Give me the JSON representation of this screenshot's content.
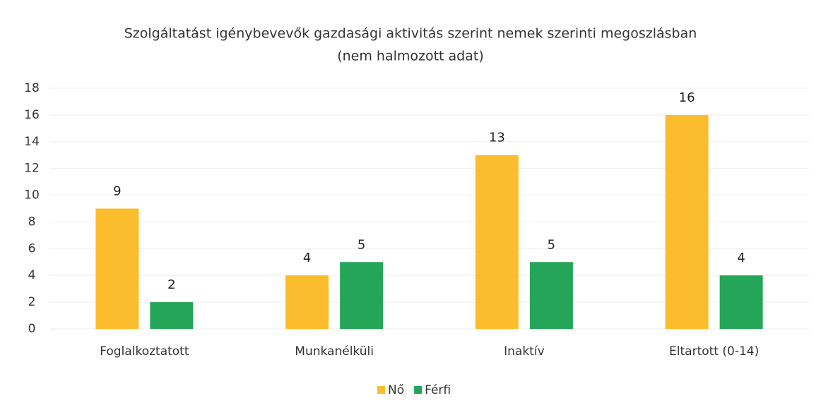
{
  "chart_data": {
    "type": "bar",
    "title": "Szolgáltatást igénybevevők gazdasági aktivitás szerint nemek szerinti megoszlásban",
    "subtitle": "(nem halmozott adat)",
    "categories": [
      "Foglalkoztatott",
      "Munkanélküli",
      "Inaktív",
      "Eltartott (0-14)"
    ],
    "series": [
      {
        "name": "Nő",
        "color": "#fbbd2e",
        "values": [
          9,
          4,
          13,
          16
        ]
      },
      {
        "name": "Férfi",
        "color": "#24a558",
        "values": [
          2,
          5,
          5,
          4
        ]
      }
    ],
    "ylim": [
      0,
      18
    ],
    "yticks": [
      0,
      2,
      4,
      6,
      8,
      10,
      12,
      14,
      16,
      18
    ],
    "grid": true,
    "legend": "bottom"
  }
}
